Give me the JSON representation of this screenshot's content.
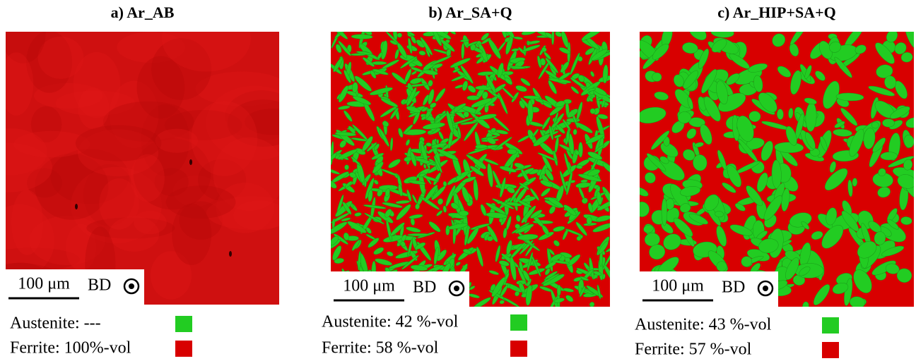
{
  "panels": [
    {
      "title": "a) Ar_AB",
      "scale_bar": "100 μm",
      "direction": "BD",
      "legend": [
        {
          "label": "Austenite: ---"
        },
        {
          "label": "Ferrite: 100%-vol"
        }
      ]
    },
    {
      "title": "b) Ar_SA+Q",
      "scale_bar": "100 μm",
      "direction": "BD",
      "legend": [
        {
          "label": "Austenite: 42 %-vol"
        },
        {
          "label": "Ferrite: 58 %-vol"
        }
      ]
    },
    {
      "title": "c) Ar_HIP+SA+Q",
      "scale_bar": "100 μm",
      "direction": "BD",
      "legend": [
        {
          "label": "Austenite: 43 %-vol"
        },
        {
          "label": "Ferrite: 57 %-vol"
        }
      ]
    }
  ]
}
